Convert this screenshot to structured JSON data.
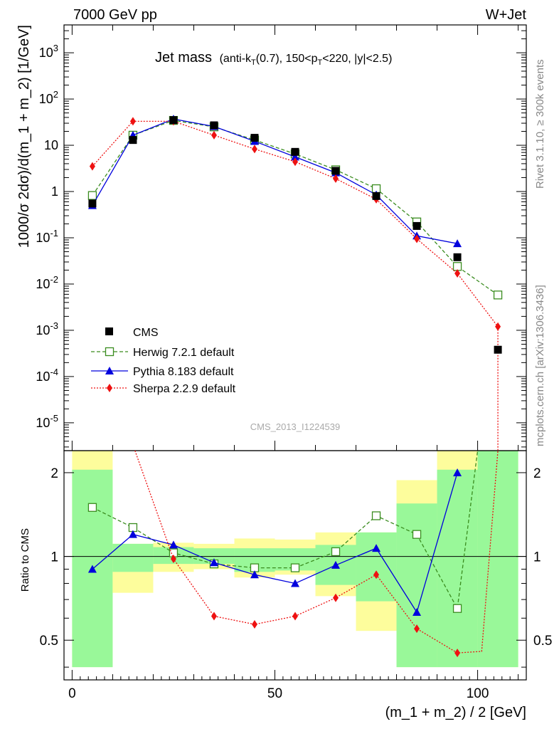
{
  "header": {
    "left": "7000 GeV pp",
    "right": "W+Jet"
  },
  "title": {
    "main": "Jet mass",
    "sub": "(anti-k",
    "sub_T": "T",
    "sub2": "(0.7), 150<p",
    "sub2_T": "T",
    "sub3": "<220, |y|<2.5)"
  },
  "side_text": {
    "rivet": "Rivet 3.1.10, ≥ 300k events",
    "mcplots": "mcplots.cern.ch [arXiv:1306.3436]"
  },
  "watermark": "CMS_2013_I1224539",
  "y_label_top": "1000/σ 2dσ)/d(m_1 + m_2) [1/GeV]",
  "y_label_ratio": "Ratio to CMS",
  "x_label": "(m_1 + m_2) / 2 [GeV]",
  "legend": {
    "cms": "CMS",
    "herwig": "Herwig 7.2.1 default",
    "pythia": "Pythia 8.183 default",
    "sherpa": "Sherpa 2.2.9 default"
  },
  "colors": {
    "herwig": "#3a8c1f",
    "pythia": "#0000dd",
    "sherpa": "#ee1111",
    "band_green": "#99f899",
    "band_yellow": "#fdfd9c"
  },
  "top_ticks": [
    "10^-5",
    "10^-4",
    "10^-3",
    "10^-2",
    "10^-1",
    "1",
    "10",
    "10^2",
    "10^3"
  ],
  "ratio_ticks": [
    "0.5",
    "1",
    "2"
  ],
  "x_ticks": [
    "0",
    "50",
    "100"
  ],
  "chart_data": {
    "type": "line",
    "xlabel": "(m_1 + m_2) / 2 [GeV]",
    "ylabel": "1000/σ 2dσ)/d(m_1 + m_2) [1/GeV]",
    "xlim": [
      -2,
      112
    ],
    "ylim": [
      2.5e-06,
      4000
    ],
    "yscale": "log",
    "x": [
      5,
      15,
      25,
      35,
      45,
      55,
      65,
      75,
      85,
      95,
      105
    ],
    "series": [
      {
        "name": "CMS",
        "values": [
          0.55,
          13.0,
          35.0,
          27.0,
          14.5,
          7.2,
          2.8,
          0.8,
          0.18,
          0.038,
          0.00038
        ]
      },
      {
        "name": "Herwig 7.2.1 default",
        "values": [
          0.82,
          16.5,
          34.5,
          25.0,
          13.0,
          6.5,
          2.95,
          1.15,
          0.22,
          0.024,
          0.0058
        ]
      },
      {
        "name": "Pythia 8.183 default",
        "values": [
          0.5,
          16.5,
          37.0,
          25.5,
          12.2,
          5.6,
          2.55,
          0.85,
          0.11,
          0.075,
          null
        ]
      },
      {
        "name": "Sherpa 2.2.9 default",
        "values": [
          3.5,
          33.0,
          33.0,
          16.5,
          8.3,
          4.4,
          1.9,
          0.68,
          0.095,
          0.017,
          0.0012
        ]
      }
    ],
    "ratio": {
      "ylabel": "Ratio to CMS",
      "ylim": [
        0.36,
        2.4
      ],
      "yscale": "log",
      "herwig": [
        1.5,
        1.27,
        1.03,
        0.94,
        0.91,
        0.91,
        1.04,
        1.4,
        1.2,
        0.65,
        null
      ],
      "pythia": [
        0.9,
        1.2,
        1.1,
        0.95,
        0.86,
        0.8,
        0.93,
        1.07,
        0.63,
        2.0,
        null
      ],
      "sherpa": [
        null,
        null,
        0.98,
        0.61,
        0.57,
        0.61,
        0.71,
        0.86,
        0.55,
        0.45,
        null
      ],
      "bands": [
        {
          "x": [
            0,
            10
          ],
          "green": [
            0.4,
            2.05
          ],
          "yellow": [
            0.4,
            2.4
          ]
        },
        {
          "x": [
            10,
            20
          ],
          "green": [
            0.88,
            1.11
          ],
          "yellow": [
            0.74,
            1.11
          ]
        },
        {
          "x": [
            20,
            30
          ],
          "green": [
            0.94,
            1.08
          ],
          "yellow": [
            0.88,
            1.12
          ]
        },
        {
          "x": [
            30,
            40
          ],
          "green": [
            0.94,
            1.07
          ],
          "yellow": [
            0.9,
            1.11
          ]
        },
        {
          "x": [
            40,
            50
          ],
          "green": [
            0.88,
            1.07
          ],
          "yellow": [
            0.84,
            1.16
          ]
        },
        {
          "x": [
            50,
            60
          ],
          "green": [
            0.89,
            1.07
          ],
          "yellow": [
            0.86,
            1.15
          ]
        },
        {
          "x": [
            60,
            70
          ],
          "green": [
            0.79,
            1.1
          ],
          "yellow": [
            0.72,
            1.22
          ]
        },
        {
          "x": [
            70,
            80
          ],
          "green": [
            0.69,
            1.22
          ],
          "yellow": [
            0.54,
            1.22
          ]
        },
        {
          "x": [
            80,
            90
          ],
          "green": [
            0.4,
            1.55
          ],
          "yellow": [
            0.4,
            1.88
          ]
        },
        {
          "x": [
            90,
            100
          ],
          "green": [
            0.4,
            2.05
          ],
          "yellow": [
            0.4,
            2.4
          ]
        },
        {
          "x": [
            100,
            110
          ],
          "green": [
            0.4,
            2.4
          ],
          "yellow": [
            0.4,
            2.4
          ]
        }
      ]
    }
  }
}
